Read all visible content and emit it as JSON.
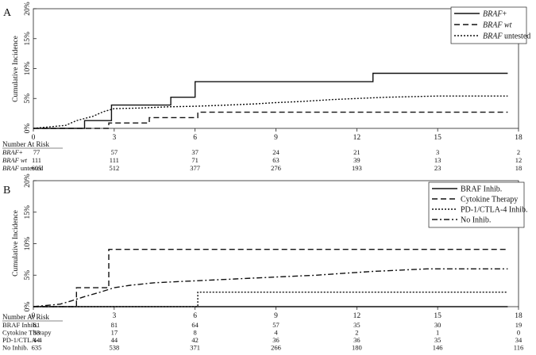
{
  "chart_data": [
    {
      "panel_label": "A",
      "type": "line",
      "step": true,
      "ylabel": "Cumulative Incidence",
      "xlim": [
        0,
        18
      ],
      "ylim": [
        0,
        20
      ],
      "x_ticks": [
        0,
        3,
        6,
        9,
        12,
        15,
        18
      ],
      "y_ticks": [
        0,
        5,
        10,
        15,
        20
      ],
      "y_tick_labels": [
        "0%",
        "5%",
        "10%",
        "15%",
        "20%"
      ],
      "legend_position": "top-right",
      "series": [
        {
          "name": "BRAF+",
          "name_main": "BRAF",
          "name_suffix": "+",
          "italic": "main",
          "style": "solid",
          "x": [
            0,
            1.9,
            1.9,
            2.9,
            2.9,
            5.1,
            5.1,
            6.0,
            6.0,
            12.6,
            12.6,
            17.6
          ],
          "y": [
            0,
            0,
            1.3,
            1.3,
            3.9,
            3.9,
            5.2,
            5.2,
            7.8,
            7.8,
            9.2,
            9.2
          ]
        },
        {
          "name": "BRAF wt",
          "name_main": "BRAF wt",
          "name_suffix": "",
          "italic": "all",
          "style": "dashed",
          "x": [
            0,
            2.8,
            2.8,
            4.3,
            4.3,
            6.1,
            6.1,
            17.6
          ],
          "y": [
            0,
            0,
            0.9,
            0.9,
            1.8,
            1.8,
            2.7,
            2.7
          ]
        },
        {
          "name": "BRAF untested",
          "name_main": "BRAF",
          "name_suffix": " untested",
          "italic": "main",
          "style": "dotted",
          "x": [
            0,
            1.2,
            1.6,
            2.2,
            2.6,
            3.0,
            4.0,
            5.0,
            6.0,
            7.2,
            8.3,
            9.0,
            10.0,
            11.0,
            12.0,
            13.1,
            14.0,
            15.0,
            17.6
          ],
          "y": [
            0,
            0.5,
            1.3,
            2.0,
            2.8,
            3.3,
            3.4,
            3.6,
            3.7,
            3.9,
            4.1,
            4.3,
            4.5,
            4.8,
            5.0,
            5.2,
            5.3,
            5.4,
            5.4
          ]
        }
      ],
      "risk_table": {
        "title": "Number At Risk",
        "rows": [
          {
            "label_main": "BRAF",
            "label_suffix": "+",
            "italic": "main",
            "values": [
              "77",
              "57",
              "37",
              "24",
              "21",
              "3",
              "2"
            ]
          },
          {
            "label_main": "BRAF wt",
            "label_suffix": "",
            "italic": "all",
            "values": [
              "111",
              "111",
              "71",
              "63",
              "39",
              "13",
              "12"
            ]
          },
          {
            "label_main": "BRAF",
            "label_suffix": " untested",
            "italic": "main",
            "values": [
              "605",
              "512",
              "377",
              "276",
              "193",
              "23",
              "18"
            ]
          }
        ]
      }
    },
    {
      "panel_label": "B",
      "type": "line",
      "step": true,
      "ylabel": "Cumulative Incidence",
      "xlim": [
        0,
        18
      ],
      "ylim": [
        0,
        20
      ],
      "x_ticks": [
        0,
        3,
        6,
        9,
        12,
        15,
        18
      ],
      "y_ticks": [
        0,
        5,
        10,
        15,
        20
      ],
      "y_tick_labels": [
        "0%",
        "5%",
        "10%",
        "15%",
        "20%"
      ],
      "legend_position": "top-right",
      "series": [
        {
          "name": "BRAF Inhib.",
          "name_main": "BRAF Inhib.",
          "name_suffix": "",
          "italic": "none",
          "style": "solid",
          "x": [
            0,
            17.6
          ],
          "y": [
            0,
            0
          ]
        },
        {
          "name": "Cytokine Therapy",
          "name_main": "Cytokine Therapy",
          "name_suffix": "",
          "italic": "none",
          "style": "dashed",
          "x": [
            0,
            1.6,
            1.6,
            2.8,
            2.8,
            17.6
          ],
          "y": [
            0,
            0,
            3.0,
            3.0,
            9.1,
            9.1
          ]
        },
        {
          "name": "PD-1/CTLA-4 Inhib.",
          "name_main": "PD-1/CTLA-4 Inhib.",
          "name_suffix": "",
          "italic": "none",
          "style": "dotted",
          "x": [
            0,
            6.1,
            6.1,
            17.6
          ],
          "y": [
            0,
            0,
            2.3,
            2.3
          ]
        },
        {
          "name": "No Inhib.",
          "name_main": "No Inhib.",
          "name_suffix": "",
          "italic": "none",
          "style": "dashdot",
          "x": [
            0,
            1.0,
            1.4,
            1.9,
            2.4,
            3.0,
            3.6,
            4.5,
            5.5,
            6.5,
            7.5,
            8.5,
            9.5,
            10.5,
            11.5,
            12.6,
            13.6,
            14.6,
            17.6
          ],
          "y": [
            0,
            0.4,
            0.9,
            1.6,
            2.2,
            3.0,
            3.4,
            3.8,
            4.0,
            4.2,
            4.4,
            4.6,
            4.8,
            5.0,
            5.3,
            5.6,
            5.8,
            6.0,
            6.0
          ]
        }
      ],
      "risk_table": {
        "title": "Number At Risk",
        "rows": [
          {
            "label_main": "BRAF Inhib.",
            "label_suffix": "",
            "italic": "none",
            "values": [
              "81",
              "81",
              "64",
              "57",
              "35",
              "30",
              "19"
            ]
          },
          {
            "label_main": "Cytokine Therapy",
            "label_suffix": "",
            "italic": "none",
            "values": [
              "33",
              "17",
              "8",
              "4",
              "2",
              "1",
              "0"
            ]
          },
          {
            "label_main": "PD-1/CTLA-4",
            "label_suffix": "",
            "italic": "none",
            "values": [
              "44",
              "44",
              "42",
              "36",
              "36",
              "35",
              "34"
            ]
          },
          {
            "label_main": "No Inhib.",
            "label_suffix": "",
            "italic": "none",
            "values": [
              "635",
              "538",
              "371",
              "266",
              "180",
              "146",
              "116"
            ]
          }
        ]
      }
    }
  ]
}
